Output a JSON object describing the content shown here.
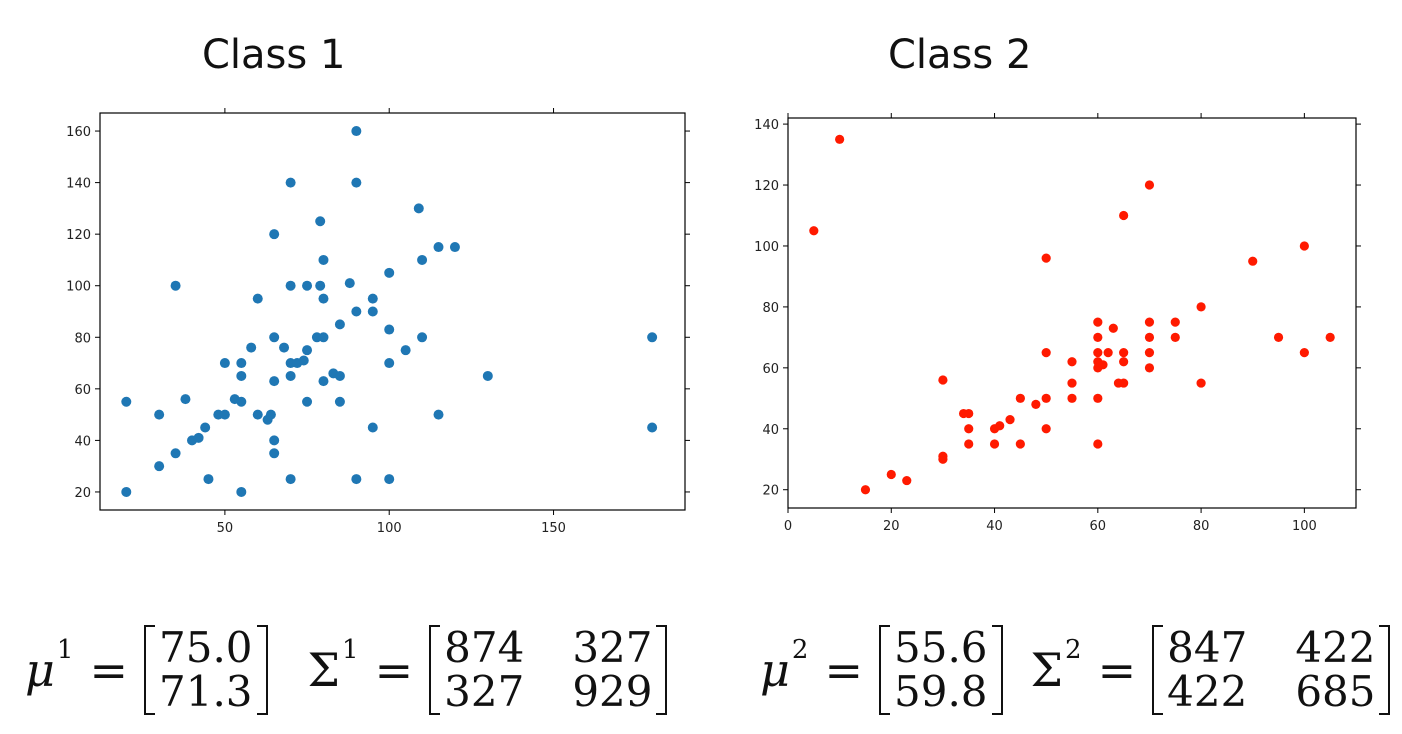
{
  "panels": [
    {
      "title": "Class 1",
      "mean_symbol": "μ",
      "mean_sup": "1",
      "mean_values": [
        "75.0",
        "71.3"
      ],
      "cov_symbol": "Σ",
      "cov_sup": "1",
      "cov_values": [
        "874",
        "327",
        "327",
        "929"
      ]
    },
    {
      "title": "Class 2",
      "mean_symbol": "μ",
      "mean_sup": "2",
      "mean_values": [
        "55.6",
        "59.8"
      ],
      "cov_symbol": "Σ",
      "cov_sup": "2",
      "cov_values": [
        "847",
        "422",
        "422",
        "685"
      ]
    }
  ],
  "equals": "=",
  "chart_data": [
    {
      "type": "scatter",
      "title": "Class 1",
      "color": "#1f77b4",
      "xlim": [
        12,
        190
      ],
      "ylim": [
        13,
        167
      ],
      "xticks": [
        50,
        100,
        150
      ],
      "yticks": [
        20,
        40,
        60,
        80,
        100,
        120,
        140,
        160
      ],
      "grid": false,
      "points": [
        [
          20,
          20
        ],
        [
          20,
          55
        ],
        [
          30,
          30
        ],
        [
          30,
          50
        ],
        [
          35,
          35
        ],
        [
          35,
          100
        ],
        [
          38,
          56
        ],
        [
          40,
          40
        ],
        [
          42,
          41
        ],
        [
          44,
          45
        ],
        [
          45,
          25
        ],
        [
          48,
          50
        ],
        [
          50,
          50
        ],
        [
          50,
          70
        ],
        [
          53,
          56
        ],
        [
          55,
          20
        ],
        [
          55,
          55
        ],
        [
          55,
          65
        ],
        [
          55,
          70
        ],
        [
          58,
          76
        ],
        [
          60,
          50
        ],
        [
          60,
          95
        ],
        [
          63,
          48
        ],
        [
          64,
          50
        ],
        [
          65,
          35
        ],
        [
          65,
          40
        ],
        [
          65,
          63
        ],
        [
          65,
          80
        ],
        [
          65,
          120
        ],
        [
          68,
          76
        ],
        [
          70,
          25
        ],
        [
          70,
          65
        ],
        [
          70,
          70
        ],
        [
          70,
          100
        ],
        [
          70,
          140
        ],
        [
          72,
          70
        ],
        [
          74,
          71
        ],
        [
          75,
          55
        ],
        [
          75,
          75
        ],
        [
          75,
          100
        ],
        [
          78,
          80
        ],
        [
          79,
          100
        ],
        [
          79,
          125
        ],
        [
          80,
          63
        ],
        [
          80,
          80
        ],
        [
          80,
          95
        ],
        [
          80,
          110
        ],
        [
          83,
          66
        ],
        [
          85,
          55
        ],
        [
          85,
          65
        ],
        [
          85,
          85
        ],
        [
          88,
          101
        ],
        [
          90,
          25
        ],
        [
          90,
          90
        ],
        [
          90,
          140
        ],
        [
          90,
          160
        ],
        [
          95,
          45
        ],
        [
          95,
          90
        ],
        [
          95,
          95
        ],
        [
          100,
          25
        ],
        [
          100,
          70
        ],
        [
          100,
          83
        ],
        [
          100,
          105
        ],
        [
          105,
          75
        ],
        [
          109,
          130
        ],
        [
          110,
          80
        ],
        [
          110,
          110
        ],
        [
          115,
          50
        ],
        [
          115,
          115
        ],
        [
          120,
          115
        ],
        [
          130,
          65
        ],
        [
          180,
          45
        ],
        [
          180,
          80
        ]
      ]
    },
    {
      "type": "scatter",
      "title": "Class 2",
      "color": "#ff1a00",
      "xlim": [
        0,
        110
      ],
      "ylim": [
        14,
        142
      ],
      "xticks": [
        0,
        20,
        40,
        60,
        80,
        100
      ],
      "yticks": [
        20,
        40,
        60,
        80,
        100,
        120,
        140
      ],
      "grid": false,
      "points": [
        [
          5,
          105
        ],
        [
          10,
          135
        ],
        [
          15,
          20
        ],
        [
          20,
          25
        ],
        [
          23,
          23
        ],
        [
          30,
          30
        ],
        [
          30,
          31
        ],
        [
          30,
          56
        ],
        [
          34,
          45
        ],
        [
          35,
          35
        ],
        [
          35,
          40
        ],
        [
          35,
          45
        ],
        [
          40,
          35
        ],
        [
          40,
          40
        ],
        [
          41,
          41
        ],
        [
          43,
          43
        ],
        [
          45,
          35
        ],
        [
          45,
          50
        ],
        [
          48,
          48
        ],
        [
          50,
          40
        ],
        [
          50,
          50
        ],
        [
          50,
          65
        ],
        [
          50,
          96
        ],
        [
          55,
          50
        ],
        [
          55,
          55
        ],
        [
          55,
          62
        ],
        [
          60,
          35
        ],
        [
          60,
          50
        ],
        [
          60,
          60
        ],
        [
          60,
          62
        ],
        [
          60,
          65
        ],
        [
          60,
          70
        ],
        [
          60,
          75
        ],
        [
          61,
          61
        ],
        [
          62,
          65
        ],
        [
          63,
          73
        ],
        [
          64,
          55
        ],
        [
          65,
          55
        ],
        [
          65,
          62
        ],
        [
          65,
          65
        ],
        [
          65,
          110
        ],
        [
          70,
          60
        ],
        [
          70,
          65
        ],
        [
          70,
          70
        ],
        [
          70,
          75
        ],
        [
          70,
          120
        ],
        [
          75,
          70
        ],
        [
          75,
          75
        ],
        [
          80,
          55
        ],
        [
          80,
          80
        ],
        [
          90,
          95
        ],
        [
          95,
          70
        ],
        [
          100,
          65
        ],
        [
          100,
          100
        ],
        [
          105,
          70
        ]
      ]
    }
  ]
}
